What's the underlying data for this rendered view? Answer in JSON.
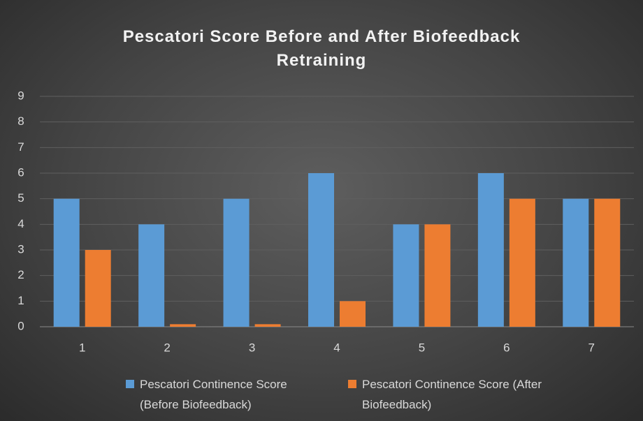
{
  "chart_data": {
    "type": "bar",
    "title": "Pescatori Score Before and After Biofeedback Retraining",
    "categories": [
      "1",
      "2",
      "3",
      "4",
      "5",
      "6",
      "7"
    ],
    "series": [
      {
        "name": "Pescatori Continence Score (Before Biofeedback)",
        "color": "#5b9bd5",
        "values": [
          5,
          4,
          5,
          6,
          4,
          6,
          5
        ]
      },
      {
        "name": "Pescatori Continence Score (After Biofeedback)",
        "color": "#ed7d31",
        "values": [
          3,
          0.1,
          0.1,
          1,
          4,
          5,
          5
        ]
      }
    ],
    "ylim": [
      0,
      9
    ],
    "yticks": [
      0,
      1,
      2,
      3,
      4,
      5,
      6,
      7,
      8,
      9
    ],
    "grid": true
  }
}
